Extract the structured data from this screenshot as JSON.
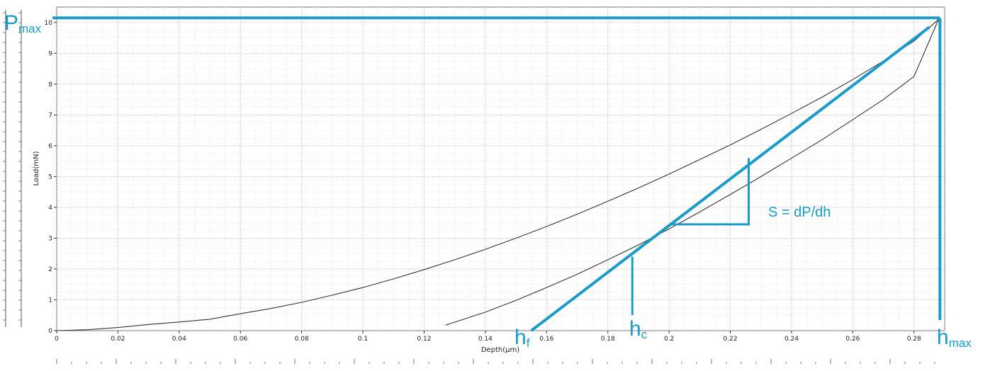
{
  "chart_data": {
    "type": "line",
    "xlabel": "Depth(μm)",
    "ylabel": "Load(mN)",
    "xlim": [
      0,
      0.29
    ],
    "ylim": [
      0,
      10.5
    ],
    "x_ticks": [
      "0",
      "0.02",
      "0.04",
      "0.06",
      "0.08",
      "0.1",
      "0.12",
      "0.14",
      "0.16",
      "0.18",
      "0.2",
      "0.22",
      "0.24",
      "0.26",
      "0.28"
    ],
    "x_tick_values": [
      0,
      0.02,
      0.04,
      0.06,
      0.08,
      0.1,
      0.12,
      0.14,
      0.16,
      0.18,
      0.2,
      0.22,
      0.24,
      0.26,
      0.28
    ],
    "y_ticks": [
      "0",
      "1",
      "2",
      "3",
      "4",
      "5",
      "6",
      "7",
      "8",
      "9",
      "10"
    ],
    "y_tick_values": [
      0,
      1,
      2,
      3,
      4,
      5,
      6,
      7,
      8,
      9,
      10
    ],
    "grid": true,
    "series": [
      {
        "x": [
          0,
          0.01,
          0.02,
          0.03,
          0.04,
          0.05,
          0.06,
          0.07,
          0.08,
          0.09,
          0.1,
          0.11,
          0.12,
          0.13,
          0.14,
          0.15,
          0.16,
          0.17,
          0.18,
          0.19,
          0.2,
          0.21,
          0.22,
          0.23,
          0.24,
          0.25,
          0.26,
          0.27,
          0.28,
          0.288
        ],
        "y": [
          0,
          0.03,
          0.1,
          0.2,
          0.28,
          0.37,
          0.55,
          0.72,
          0.92,
          1.15,
          1.4,
          1.68,
          1.98,
          2.3,
          2.64,
          3.0,
          3.38,
          3.78,
          4.2,
          4.63,
          5.08,
          5.55,
          6.03,
          6.53,
          7.05,
          7.58,
          8.15,
          8.75,
          9.4,
          10.1
        ]
      },
      {
        "x": [
          0.127,
          0.14,
          0.15,
          0.16,
          0.17,
          0.18,
          0.19,
          0.2,
          0.21,
          0.22,
          0.23,
          0.24,
          0.25,
          0.26,
          0.27,
          0.28,
          0.288
        ],
        "y": [
          0.18,
          0.6,
          0.98,
          1.4,
          1.83,
          2.3,
          2.78,
          3.3,
          3.85,
          4.42,
          5.0,
          5.6,
          6.2,
          6.85,
          7.5,
          8.25,
          10.1
        ]
      }
    ],
    "annotations": {
      "pmax_label": "Pmax_",
      "pmax_base": "P",
      "pmax_sub": "max",
      "hmax_base": "h",
      "hmax_sub": "max",
      "hf_base": "h",
      "hf_sub": "f",
      "hc_base": "h",
      "hc_sub": "c",
      "stiffness_label": "S = dP/dh",
      "pmax_value": 10.15,
      "hmax_value": 0.288,
      "hf_value": 0.155,
      "hc_value": 0.188,
      "tangent": [
        [
          0.155,
          0
        ],
        [
          0.285,
          9.85
        ]
      ],
      "slope_triangle": [
        [
          0.2,
          3.45
        ],
        [
          0.226,
          3.45
        ],
        [
          0.226,
          5.6
        ]
      ],
      "hc_marker_top": 2.4
    },
    "colors": {
      "annotation": "#1a9bc9",
      "curve": "#333333",
      "grid": "#cfcfcf"
    }
  }
}
